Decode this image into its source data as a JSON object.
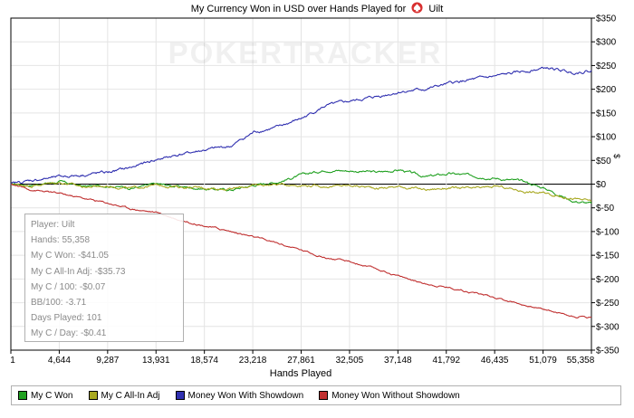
{
  "header": {
    "title_before": "My Currency Won in USD over Hands Played for",
    "title_after": "Uilt"
  },
  "watermark": "POKERTRACKER",
  "chart_data": {
    "type": "line",
    "title": "My Currency Won in USD over Hands Played for Uilt",
    "xlabel": "Hands Played",
    "ylabel": "$",
    "xlim": [
      1,
      55358
    ],
    "ylim": [
      -350,
      350
    ],
    "x_ticks": [
      "1",
      "4,644",
      "9,287",
      "13,931",
      "18,574",
      "23,218",
      "27,861",
      "32,505",
      "37,148",
      "41,792",
      "46,435",
      "51,079",
      "55,358"
    ],
    "y_ticks": [
      "$350",
      "$300",
      "$250",
      "$200",
      "$150",
      "$100",
      "$50",
      "$0",
      "$-50",
      "$-100",
      "$-150",
      "$-200",
      "$-250",
      "$-300",
      "$-350"
    ],
    "grid": true,
    "legend": "bottom",
    "x": [
      1,
      2000,
      4644,
      7000,
      9287,
      11500,
      13931,
      16000,
      18574,
      21000,
      23218,
      25500,
      27861,
      30000,
      32505,
      35000,
      37148,
      39500,
      41792,
      44000,
      46435,
      49000,
      51079,
      53500,
      55358
    ],
    "series": [
      {
        "name": "My C Won",
        "color": "#20a020",
        "values": [
          0,
          -2,
          5,
          -5,
          -3,
          -8,
          0,
          -5,
          -10,
          -12,
          -2,
          5,
          20,
          30,
          28,
          25,
          30,
          15,
          22,
          18,
          12,
          5,
          -10,
          -35,
          -41
        ]
      },
      {
        "name": "My C All-In Adj",
        "color": "#a8a820",
        "values": [
          0,
          -3,
          4,
          -6,
          -4,
          -9,
          -2,
          -6,
          -8,
          -10,
          -3,
          0,
          -2,
          -5,
          -3,
          -8,
          -5,
          -12,
          -8,
          -10,
          -5,
          -15,
          -20,
          -30,
          -36
        ]
      },
      {
        "name": "Money Won With Showdown",
        "color": "#3030b0",
        "values": [
          0,
          8,
          15,
          20,
          25,
          35,
          52,
          62,
          72,
          80,
          110,
          120,
          140,
          165,
          175,
          185,
          195,
          200,
          212,
          220,
          228,
          238,
          245,
          235,
          240
        ]
      },
      {
        "name": "Money Won Without Showdown",
        "color": "#c03030",
        "values": [
          0,
          -12,
          -20,
          -30,
          -40,
          -52,
          -60,
          -75,
          -88,
          -100,
          -112,
          -125,
          -140,
          -155,
          -165,
          -180,
          -195,
          -210,
          -218,
          -228,
          -240,
          -255,
          -265,
          -278,
          -281
        ]
      }
    ]
  },
  "info_box": {
    "lines": [
      "Player: Uilt",
      "Hands: 55,358",
      "My C Won: -$41.05",
      "My C All-In Adj: -$35.73",
      "My C / 100: -$0.07",
      "BB/100: -3.71",
      "Days Played: 101",
      "My C / Day: -$0.41"
    ]
  }
}
